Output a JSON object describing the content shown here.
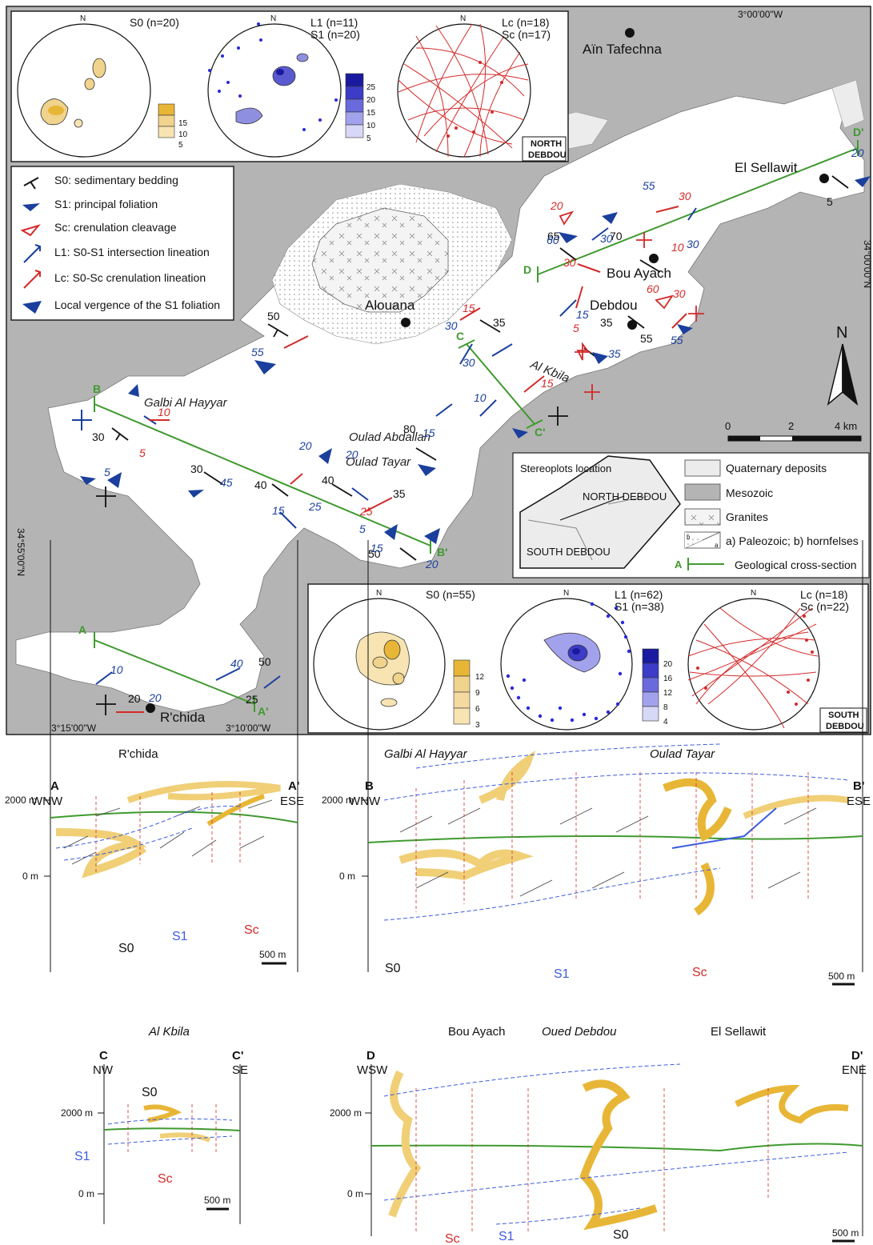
{
  "map": {
    "coords": {
      "top": "3°00'00\"W",
      "left_bottom": "3°15'00\"W",
      "mid_bottom": "3°10'00\"W",
      "right_side": "34°00'00\"N",
      "left_side": "34°55'00\"N"
    },
    "towns": {
      "ain": "Aïn Tafechna",
      "sellawit": "El Sellawit",
      "bouayach": "Bou Ayach",
      "debdou": "Debdou",
      "alouana": "Alouana",
      "kbila": "Al Kbila",
      "galbi": "Galbi Al Hayyar",
      "abdallah": "Oulad Abdallah",
      "tayar": "Oulad Tayar",
      "rchida": "R'chida"
    },
    "north_label": "N",
    "scale": {
      "zero": "0",
      "mid": "2",
      "end": "4 km"
    }
  },
  "legend": {
    "items": [
      {
        "label": "S0: sedimentary bedding"
      },
      {
        "label": "S1: principal foliation"
      },
      {
        "label": "Sc: crenulation cleavage"
      },
      {
        "label": "L1: S0-S1 intersection lineation"
      },
      {
        "label": "Lc: S0-Sc crenulation lineation"
      },
      {
        "label": "Local vergence of the S1 foliation"
      }
    ]
  },
  "key": {
    "inset_title": "Stereoplots location",
    "inset_north": "NORTH DEBDOU",
    "inset_south": "SOUTH DEBDOU",
    "quaternary": "Quaternary deposits",
    "mesozoic": "Mesozoic",
    "granites": "Granites",
    "paleozoic": "a) Paleozoic; b) hornfelses",
    "section": "Geological cross-section",
    "section_letter": "A",
    "a": "a",
    "b": "b"
  },
  "stereo_north": {
    "s0": "S0 (n=20)",
    "l1": "L1 (n=11)",
    "s1": "S1 (n=20)",
    "lc": "Lc (n=18)",
    "sc": "Sc (n=17)",
    "n": "N",
    "scale_yellow": [
      "15",
      "10",
      "5"
    ],
    "scale_blue": [
      "25",
      "20",
      "15",
      "10",
      "5"
    ],
    "region1": "NORTH",
    "region2": "DEBDOU"
  },
  "stereo_south": {
    "s0": "S0 (n=55)",
    "l1": "L1 (n=62)",
    "s1": "S1 (n=38)",
    "lc": "Lc (n=18)",
    "sc": "Sc (n=22)",
    "n": "N",
    "scale_yellow": [
      "12",
      "9",
      "6",
      "3"
    ],
    "scale_blue": [
      "20",
      "16",
      "12",
      "8",
      "4"
    ],
    "region1": "SOUTH",
    "region2": "DEBDOU"
  },
  "sections": {
    "A": {
      "title": "R'chida",
      "left": "A",
      "right": "A'",
      "ldir": "WNW",
      "rdir": "ESE"
    },
    "B": {
      "title1": "Galbi Al Hayyar",
      "title2": "Oulad Tayar",
      "left": "B",
      "right": "B'",
      "ldir": "WNW",
      "rdir": "ESE"
    },
    "C": {
      "title": "Al Kbila",
      "left": "C",
      "right": "C'",
      "ldir": "NW",
      "rdir": "SE"
    },
    "D": {
      "title1": "Bou Ayach",
      "title2": "Oued Debdou",
      "title3": "El Sellawit",
      "left": "D",
      "right": "D'",
      "ldir": "WSW",
      "rdir": "ENE"
    },
    "elev_top": "2000 m",
    "elev_zero": "0 m",
    "scale": "500 m",
    "s0": "S0",
    "s1": "S1",
    "sc": "Sc"
  },
  "map_numbers": {
    "black": [
      "50",
      "30",
      "30",
      "40",
      "40",
      "35",
      "50",
      "80",
      "35",
      "35",
      "55",
      "65",
      "70",
      "5",
      "20",
      "25",
      "50"
    ],
    "blue": [
      "55",
      "5",
      "45",
      "20",
      "20",
      "15",
      "15",
      "25",
      "5",
      "15",
      "20",
      "30",
      "10",
      "30",
      "15",
      "35",
      "55",
      "60",
      "30",
      "55",
      "30",
      "20",
      "10",
      "20",
      "40"
    ],
    "red": [
      "10",
      "5",
      "25",
      "15",
      "15",
      "5",
      "30",
      "20",
      "10",
      "60",
      "30",
      "30"
    ]
  },
  "colors": {
    "red": "#d42a2a",
    "blue": "#1a3f9c",
    "green": "#3f9a2f",
    "gray": "#b4b4b4",
    "yellow": "#e8b637"
  }
}
